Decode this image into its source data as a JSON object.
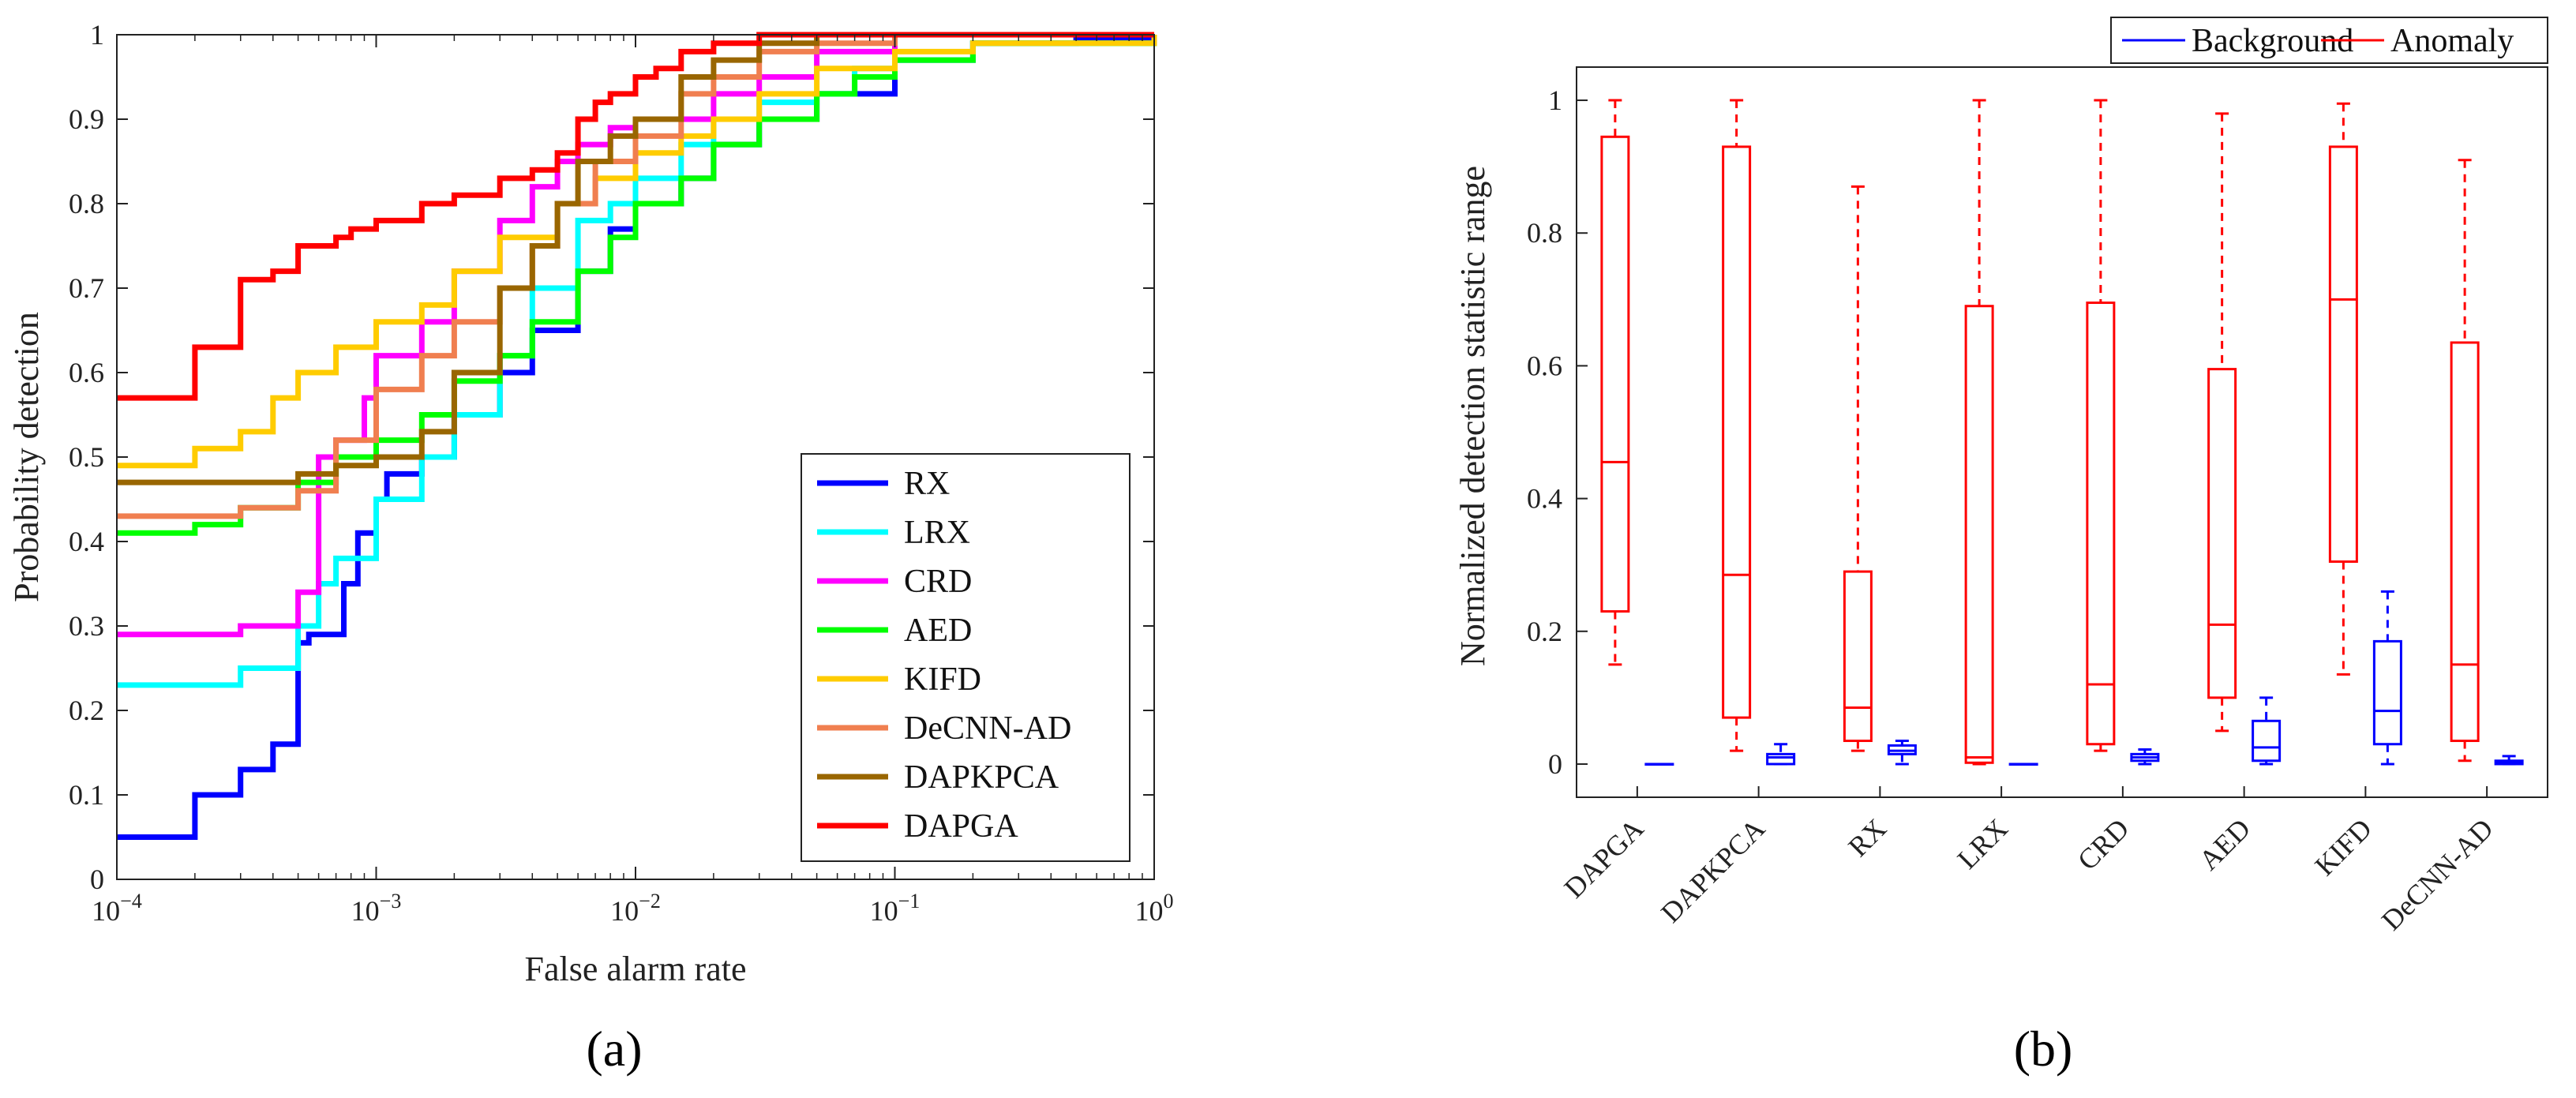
{
  "chart_data": [
    {
      "type": "line",
      "panel_label": "(a)",
      "xlabel": "False alarm rate",
      "ylabel": "Probability detection",
      "xscale": "log",
      "xlim": [
        0.0001,
        1
      ],
      "ylim": [
        0,
        1
      ],
      "x_ticks": [
        {
          "value": 0.0001,
          "base": "10",
          "exp": "−4"
        },
        {
          "value": 0.001,
          "base": "10",
          "exp": "−3"
        },
        {
          "value": 0.01,
          "base": "10",
          "exp": "−2"
        },
        {
          "value": 0.1,
          "base": "10",
          "exp": "−1"
        },
        {
          "value": 1,
          "base": "10",
          "exp": "0"
        }
      ],
      "y_ticks": [
        "0",
        "0.1",
        "0.2",
        "0.3",
        "0.4",
        "0.5",
        "0.6",
        "0.7",
        "0.8",
        "0.9",
        "1"
      ],
      "legend_position": "bottom-right",
      "series": [
        {
          "name": "RX",
          "color": "#0000ff",
          "x": [
            0.0001,
            0.0002,
            0.0003,
            0.0004,
            0.0005,
            0.00055,
            0.00075,
            0.00085,
            0.001,
            0.0011,
            0.0015,
            0.002,
            0.003,
            0.004,
            0.006,
            0.008,
            0.01,
            0.015,
            0.02,
            0.03,
            0.05,
            0.1,
            0.2,
            0.5,
            1
          ],
          "y": [
            0.05,
            0.1,
            0.13,
            0.16,
            0.28,
            0.29,
            0.35,
            0.41,
            0.45,
            0.48,
            0.5,
            0.55,
            0.6,
            0.65,
            0.72,
            0.77,
            0.8,
            0.83,
            0.87,
            0.9,
            0.93,
            0.97,
            0.99,
            0.995,
            1
          ]
        },
        {
          "name": "LRX",
          "color": "#00ffff",
          "x": [
            0.0001,
            0.0003,
            0.0005,
            0.0006,
            0.0007,
            0.001,
            0.0015,
            0.002,
            0.003,
            0.004,
            0.006,
            0.008,
            0.01,
            0.015,
            0.02,
            0.03,
            0.05,
            0.07,
            0.1,
            0.2,
            1
          ],
          "y": [
            0.23,
            0.25,
            0.3,
            0.35,
            0.38,
            0.45,
            0.5,
            0.55,
            0.62,
            0.7,
            0.78,
            0.8,
            0.83,
            0.87,
            0.9,
            0.92,
            0.93,
            0.96,
            0.97,
            0.99,
            1
          ]
        },
        {
          "name": "CRD",
          "color": "#ff00ff",
          "x": [
            0.0001,
            0.0003,
            0.0005,
            0.0006,
            0.0007,
            0.0009,
            0.001,
            0.0015,
            0.002,
            0.003,
            0.004,
            0.005,
            0.006,
            0.008,
            0.01,
            0.02,
            0.03,
            0.05,
            0.1,
            1
          ],
          "y": [
            0.29,
            0.3,
            0.34,
            0.5,
            0.52,
            0.57,
            0.62,
            0.66,
            0.72,
            0.78,
            0.82,
            0.85,
            0.87,
            0.89,
            0.9,
            0.93,
            0.95,
            0.98,
            1,
            1
          ]
        },
        {
          "name": "AED",
          "color": "#00ff00",
          "x": [
            0.0001,
            0.0002,
            0.0003,
            0.0005,
            0.0007,
            0.001,
            0.0015,
            0.002,
            0.003,
            0.004,
            0.006,
            0.008,
            0.01,
            0.015,
            0.02,
            0.03,
            0.05,
            0.07,
            0.1,
            0.2,
            1
          ],
          "y": [
            0.41,
            0.42,
            0.44,
            0.47,
            0.5,
            0.52,
            0.55,
            0.59,
            0.62,
            0.66,
            0.72,
            0.76,
            0.8,
            0.83,
            0.87,
            0.9,
            0.93,
            0.95,
            0.97,
            0.99,
            1
          ]
        },
        {
          "name": "KIFD",
          "color": "#ffcc00",
          "x": [
            0.0001,
            0.0002,
            0.0003,
            0.0004,
            0.0005,
            0.0007,
            0.001,
            0.0015,
            0.002,
            0.003,
            0.005,
            0.007,
            0.01,
            0.015,
            0.02,
            0.03,
            0.05,
            0.1,
            0.2,
            1
          ],
          "y": [
            0.49,
            0.51,
            0.53,
            0.57,
            0.6,
            0.63,
            0.66,
            0.68,
            0.72,
            0.76,
            0.8,
            0.83,
            0.86,
            0.88,
            0.9,
            0.93,
            0.96,
            0.98,
            0.99,
            1
          ]
        },
        {
          "name": "DeCNN-AD",
          "color": "#f07f50",
          "x": [
            0.0001,
            0.0003,
            0.0005,
            0.0007,
            0.001,
            0.0015,
            0.002,
            0.003,
            0.004,
            0.005,
            0.007,
            0.01,
            0.015,
            0.02,
            0.03,
            0.05,
            0.1,
            1
          ],
          "y": [
            0.43,
            0.44,
            0.46,
            0.52,
            0.58,
            0.62,
            0.66,
            0.7,
            0.75,
            0.8,
            0.85,
            0.88,
            0.93,
            0.95,
            0.98,
            0.99,
            1,
            1
          ]
        },
        {
          "name": "DAPKPCA",
          "color": "#996600",
          "x": [
            0.0001,
            0.0003,
            0.0005,
            0.0007,
            0.001,
            0.0015,
            0.002,
            0.003,
            0.004,
            0.005,
            0.006,
            0.008,
            0.01,
            0.015,
            0.02,
            0.03,
            0.05,
            0.1,
            1
          ],
          "y": [
            0.47,
            0.47,
            0.48,
            0.49,
            0.5,
            0.53,
            0.6,
            0.7,
            0.75,
            0.8,
            0.85,
            0.88,
            0.9,
            0.95,
            0.97,
            0.99,
            1,
            1,
            1
          ]
        },
        {
          "name": "DAPGA",
          "color": "#ff0000",
          "x": [
            0.0001,
            0.0002,
            0.0003,
            0.0004,
            0.0005,
            0.0007,
            0.0008,
            0.001,
            0.0015,
            0.002,
            0.003,
            0.004,
            0.005,
            0.006,
            0.007,
            0.008,
            0.01,
            0.012,
            0.015,
            0.02,
            0.03,
            0.05,
            0.1,
            1
          ],
          "y": [
            0.57,
            0.63,
            0.71,
            0.72,
            0.75,
            0.76,
            0.77,
            0.78,
            0.8,
            0.81,
            0.83,
            0.84,
            0.86,
            0.9,
            0.92,
            0.93,
            0.95,
            0.96,
            0.98,
            0.99,
            1,
            1,
            1,
            1
          ]
        }
      ]
    },
    {
      "type": "box",
      "panel_label": "(b)",
      "ylabel": "Normalized detection statistic range",
      "ylim": [
        -0.05,
        1.05
      ],
      "y_ticks": [
        "0",
        "0.2",
        "0.4",
        "0.6",
        "0.8",
        "1"
      ],
      "legend": [
        {
          "name": "Background",
          "color": "#0000ff"
        },
        {
          "name": "Anomaly",
          "color": "#ff0000"
        }
      ],
      "legend_position": "top-right outside",
      "categories": [
        "DAPGA",
        "DAPKPCA",
        "RX",
        "LRX",
        "CRD",
        "AED",
        "KIFD",
        "DeCNN-AD"
      ],
      "anomaly": [
        {
          "min": 0.15,
          "q1": 0.23,
          "median": 0.455,
          "q3": 0.945,
          "max": 1.0
        },
        {
          "min": 0.02,
          "q1": 0.07,
          "median": 0.285,
          "q3": 0.93,
          "max": 1.0
        },
        {
          "min": 0.02,
          "q1": 0.035,
          "median": 0.085,
          "q3": 0.29,
          "max": 0.87
        },
        {
          "min": 0.0,
          "q1": 0.002,
          "median": 0.01,
          "q3": 0.69,
          "max": 1.0
        },
        {
          "min": 0.02,
          "q1": 0.03,
          "median": 0.12,
          "q3": 0.695,
          "max": 1.0
        },
        {
          "min": 0.05,
          "q1": 0.1,
          "median": 0.21,
          "q3": 0.595,
          "max": 0.98
        },
        {
          "min": 0.135,
          "q1": 0.305,
          "median": 0.7,
          "q3": 0.93,
          "max": 0.995
        },
        {
          "min": 0.005,
          "q1": 0.035,
          "median": 0.15,
          "q3": 0.635,
          "max": 0.91
        }
      ],
      "background": [
        {
          "min": 0.0,
          "q1": 0.0,
          "median": 0.0,
          "q3": 0.0,
          "max": 0.0
        },
        {
          "min": 0.0,
          "q1": 0.0,
          "median": 0.01,
          "q3": 0.015,
          "max": 0.03
        },
        {
          "min": 0.0,
          "q1": 0.015,
          "median": 0.02,
          "q3": 0.028,
          "max": 0.035
        },
        {
          "min": 0.0,
          "q1": 0.0,
          "median": 0.0,
          "q3": 0.0,
          "max": 0.0
        },
        {
          "min": 0.0,
          "q1": 0.005,
          "median": 0.01,
          "q3": 0.015,
          "max": 0.022
        },
        {
          "min": 0.0,
          "q1": 0.005,
          "median": 0.025,
          "q3": 0.065,
          "max": 0.1
        },
        {
          "min": 0.0,
          "q1": 0.03,
          "median": 0.08,
          "q3": 0.185,
          "max": 0.26
        },
        {
          "min": 0.0,
          "q1": 0.0,
          "median": 0.002,
          "q3": 0.005,
          "max": 0.012
        }
      ]
    }
  ]
}
